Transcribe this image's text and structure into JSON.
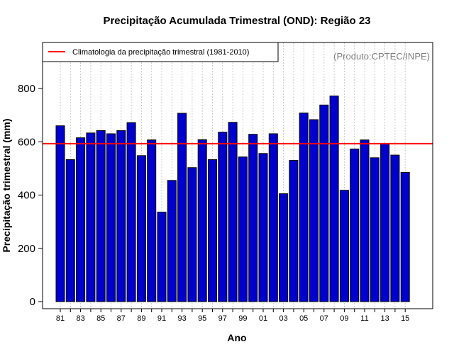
{
  "chart_data": {
    "type": "bar",
    "title": "Precipitação Acumulada Trimestral (OND): Região 23",
    "xlabel": "Ano",
    "ylabel": "Precipitação trimestral (mm)",
    "ylim": [
      0,
      955
    ],
    "yticks": [
      0,
      200,
      400,
      600,
      800
    ],
    "tick_labels": [
      "81",
      "83",
      "85",
      "87",
      "89",
      "91",
      "93",
      "95",
      "97",
      "99",
      "01",
      "03",
      "05",
      "07",
      "09",
      "11",
      "13",
      "15"
    ],
    "years": [
      1981,
      1982,
      1983,
      1984,
      1985,
      1986,
      1987,
      1988,
      1989,
      1990,
      1991,
      1992,
      1993,
      1994,
      1995,
      1996,
      1997,
      1998,
      1999,
      2000,
      2001,
      2002,
      2003,
      2004,
      2005,
      2006,
      2007,
      2008,
      2009,
      2010,
      2011,
      2012,
      2013,
      2014,
      2015
    ],
    "values": [
      660,
      533,
      615,
      633,
      642,
      630,
      642,
      672,
      548,
      607,
      336,
      455,
      707,
      503,
      608,
      533,
      636,
      673,
      543,
      628,
      556,
      630,
      405,
      530,
      708,
      683,
      738,
      772,
      418,
      573,
      607,
      540,
      593,
      550,
      485
    ],
    "bar_color": "#0000cd",
    "climatology": {
      "label": "Climatologia da precipitação trimestral (1981-2010)",
      "value": 593,
      "color": "#ff0000"
    },
    "source_note": "(Produto:CPTEC/INPE)",
    "grid": "vertical dotted",
    "legend_position": "top-left"
  }
}
